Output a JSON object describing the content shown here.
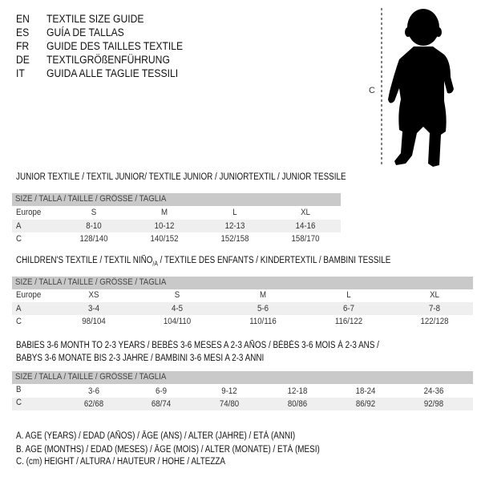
{
  "header": [
    {
      "code": "EN",
      "text": "TEXTILE SIZE GUIDE"
    },
    {
      "code": "ES",
      "text": "GUÍA DE TALLAS"
    },
    {
      "code": "FR",
      "text": "GUIDE DES TAILLES TEXTILE"
    },
    {
      "code": "DE",
      "text": "TEXTILGRÖßENFÜHRUNG"
    },
    {
      "code": "IT",
      "text": "GUIDA ALLE TAGLIE TESSILI"
    }
  ],
  "figure": {
    "label": "C",
    "icon": "child-silhouette-icon"
  },
  "size_header": "SIZE / TALLA / TAILLE / GRÖSSE / TAGLIA",
  "junior": {
    "title": "JUNIOR TEXTILE / TEXTIL JUNIOR/ TEXTILE JUNIOR / JUNIORTEXTIL / JUNIOR TESSILE",
    "rows": [
      {
        "label": "Europe",
        "values": [
          "S",
          "M",
          "L",
          "XL"
        ]
      },
      {
        "label": "A",
        "values": [
          "8-10",
          "10-12",
          "12-13",
          "14-16"
        ]
      },
      {
        "label": "C",
        "values": [
          "128/140",
          "140/152",
          "152/158",
          "158/170"
        ]
      }
    ]
  },
  "children": {
    "title": "CHILDREN'S TEXTILE / TEXTIL NIÑO",
    "title_sub": "/A",
    "title_rest": " / TEXTILE DES ENFANTS / KINDERTEXTIL / BAMBINI TESSILE",
    "rows": [
      {
        "label": "Europe",
        "values": [
          "XS",
          "S",
          "M",
          "L",
          "XL"
        ]
      },
      {
        "label": "A",
        "values": [
          "3-4",
          "4-5",
          "5-6",
          "6-7",
          "7-8"
        ]
      },
      {
        "label": "C",
        "values": [
          "98/104",
          "104/110",
          "110/116",
          "116/122",
          "122/128"
        ]
      }
    ]
  },
  "babies": {
    "title_line1": "BABIES 3-6 MONTH TO 2-3 YEARS / BEBÉS 3-6 MESES A 2-3 AÑOS / BÉBÉS 3-6 MOIS À 2-3 ANS /",
    "title_line2": "BABYS 3-6 MONATE BIS 2-3 JAHRE / BAMBINI 3-6 MESI A 2-3 ANNI",
    "rows": [
      {
        "label": "B",
        "values": [
          "3-6",
          "6-9",
          "9-12",
          "12-18",
          "18-24",
          "24-36"
        ]
      },
      {
        "label": "C",
        "values": [
          "62/68",
          "68/74",
          "74/80",
          "80/86",
          "86/92",
          "92/98"
        ]
      }
    ]
  },
  "legend": [
    "A. AGE (YEARS) / EDAD (AÑOS) / ÂGE (ANS) / ALTER (JAHRE) / ETÀ (ANNI)",
    "B. AGE (MONTHS) / EDAD (MESES) / ÂGE (MOIS) / ALTER (MONATE) / ETÀ (MESI)",
    "C. (cm) HEIGHT / ALTURA / HAUTEUR / HÖHE / ALTEZZA"
  ],
  "colors": {
    "header_band": "#c9c9c9",
    "row_band": "#efefef",
    "text": "#111111"
  }
}
